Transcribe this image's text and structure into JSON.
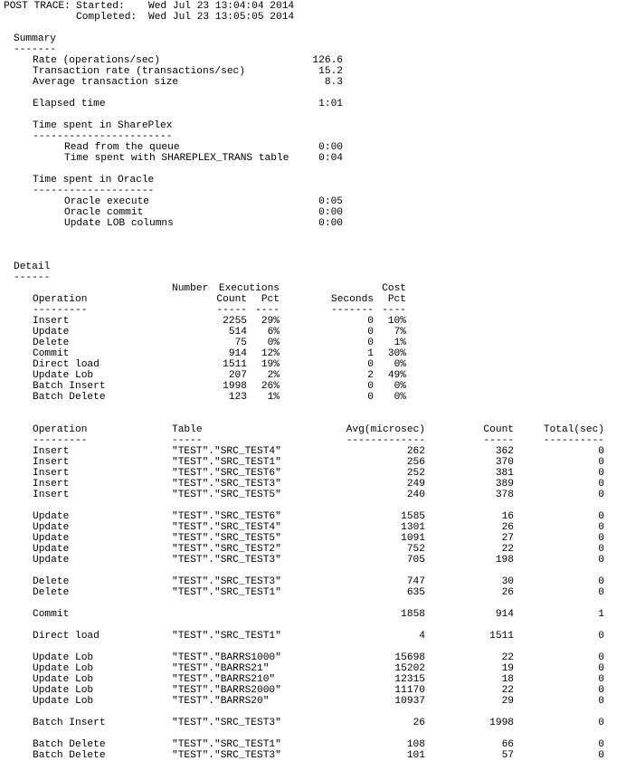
{
  "header": {
    "title": "POST TRACE:",
    "started_label": "Started:",
    "started_value": "Wed Jul 23 13:04:04 2014",
    "completed_label": "Completed:",
    "completed_value": "Wed Jul 23 13:05:05 2014"
  },
  "summary": {
    "heading": "Summary",
    "underline": "-------",
    "metrics": [
      {
        "label": "Rate (operations/sec)",
        "value": "126.6"
      },
      {
        "label": "Transaction rate (transactions/sec)",
        "value": "15.2"
      },
      {
        "label": "Average transaction size",
        "value": "8.3"
      }
    ],
    "elapsed": {
      "label": "Elapsed time",
      "value": "1:01"
    },
    "shareplex": {
      "heading": "Time spent in SharePlex",
      "underline": "-----------------------",
      "items": [
        {
          "label": "Read from the queue",
          "value": "0:00"
        },
        {
          "label": "Time spent with SHAREPLEX_TRANS table",
          "value": "0:04"
        }
      ]
    },
    "oracle": {
      "heading": "Time spent in Oracle",
      "underline": "--------------------",
      "items": [
        {
          "label": "Oracle execute",
          "value": "0:05"
        },
        {
          "label": "Oracle commit",
          "value": "0:00"
        },
        {
          "label": "Update LOB columns",
          "value": "0:00"
        }
      ]
    }
  },
  "detail": {
    "heading": "Detail",
    "underline": "------",
    "ops_table": {
      "header1": {
        "number": "Number",
        "executions": "Executions",
        "cost": "Cost"
      },
      "header2": {
        "operation": "Operation",
        "count": "Count",
        "pct": "Pct",
        "seconds": "Seconds",
        "cost_pct": "Pct"
      },
      "dashes": {
        "operation": "---------",
        "count": "-----",
        "pct": "----",
        "seconds": "-------",
        "cost_pct": "----"
      },
      "rows": [
        {
          "operation": "Insert",
          "count": "2255",
          "pct": "29%",
          "seconds": "0",
          "cost_pct": "10%"
        },
        {
          "operation": "Update",
          "count": "514",
          "pct": "6%",
          "seconds": "0",
          "cost_pct": "7%"
        },
        {
          "operation": "Delete",
          "count": "75",
          "pct": "0%",
          "seconds": "0",
          "cost_pct": "1%"
        },
        {
          "operation": "Commit",
          "count": "914",
          "pct": "12%",
          "seconds": "1",
          "cost_pct": "30%"
        },
        {
          "operation": "Direct load",
          "count": "1511",
          "pct": "19%",
          "seconds": "0",
          "cost_pct": "0%"
        },
        {
          "operation": "Update Lob",
          "count": "207",
          "pct": "2%",
          "seconds": "2",
          "cost_pct": "49%"
        },
        {
          "operation": "Batch Insert",
          "count": "1998",
          "pct": "26%",
          "seconds": "0",
          "cost_pct": "0%"
        },
        {
          "operation": "Batch Delete",
          "count": "123",
          "pct": "1%",
          "seconds": "0",
          "cost_pct": "0%"
        }
      ]
    },
    "table_stats": {
      "header": {
        "operation": "Operation",
        "table": "Table",
        "avg": "Avg(microsec)",
        "count": "Count",
        "total": "Total(sec)"
      },
      "dashes": {
        "operation": "---------",
        "table": "-----",
        "avg": "-------------",
        "count": "-----",
        "total": "----------"
      },
      "groups": [
        [
          {
            "operation": "Insert",
            "table": "\"TEST\".\"SRC_TEST4\"",
            "avg": "262",
            "count": "362",
            "total": "0"
          },
          {
            "operation": "Insert",
            "table": "\"TEST\".\"SRC_TEST1\"",
            "avg": "256",
            "count": "370",
            "total": "0"
          },
          {
            "operation": "Insert",
            "table": "\"TEST\".\"SRC_TEST6\"",
            "avg": "252",
            "count": "381",
            "total": "0"
          },
          {
            "operation": "Insert",
            "table": "\"TEST\".\"SRC_TEST3\"",
            "avg": "249",
            "count": "389",
            "total": "0"
          },
          {
            "operation": "Insert",
            "table": "\"TEST\".\"SRC_TEST5\"",
            "avg": "240",
            "count": "378",
            "total": "0"
          }
        ],
        [
          {
            "operation": "Update",
            "table": "\"TEST\".\"SRC_TEST6\"",
            "avg": "1585",
            "count": "16",
            "total": "0"
          },
          {
            "operation": "Update",
            "table": "\"TEST\".\"SRC_TEST4\"",
            "avg": "1301",
            "count": "26",
            "total": "0"
          },
          {
            "operation": "Update",
            "table": "\"TEST\".\"SRC_TEST5\"",
            "avg": "1091",
            "count": "27",
            "total": "0"
          },
          {
            "operation": "Update",
            "table": "\"TEST\".\"SRC_TEST2\"",
            "avg": "752",
            "count": "22",
            "total": "0"
          },
          {
            "operation": "Update",
            "table": "\"TEST\".\"SRC_TEST3\"",
            "avg": "705",
            "count": "198",
            "total": "0"
          }
        ],
        [
          {
            "operation": "Delete",
            "table": "\"TEST\".\"SRC_TEST3\"",
            "avg": "747",
            "count": "30",
            "total": "0"
          },
          {
            "operation": "Delete",
            "table": "\"TEST\".\"SRC_TEST1\"",
            "avg": "635",
            "count": "26",
            "total": "0"
          }
        ],
        [
          {
            "operation": "Commit",
            "table": "",
            "avg": "1858",
            "count": "914",
            "total": "1"
          }
        ],
        [
          {
            "operation": "Direct load",
            "table": "\"TEST\".\"SRC_TEST1\"",
            "avg": "4",
            "count": "1511",
            "total": "0"
          }
        ],
        [
          {
            "operation": "Update Lob",
            "table": "\"TEST\".\"BARRS1000\"",
            "avg": "15698",
            "count": "22",
            "total": "0"
          },
          {
            "operation": "Update Lob",
            "table": "\"TEST\".\"BARRS21\"",
            "avg": "15202",
            "count": "19",
            "total": "0"
          },
          {
            "operation": "Update Lob",
            "table": "\"TEST\".\"BARRS210\"",
            "avg": "12315",
            "count": "18",
            "total": "0"
          },
          {
            "operation": "Update Lob",
            "table": "\"TEST\".\"BARRS2000\"",
            "avg": "11170",
            "count": "22",
            "total": "0"
          },
          {
            "operation": "Update Lob",
            "table": "\"TEST\".\"BARRS20\"",
            "avg": "10937",
            "count": "29",
            "total": "0"
          }
        ],
        [
          {
            "operation": "Batch Insert",
            "table": "\"TEST\".\"SRC_TEST3\"",
            "avg": "26",
            "count": "1998",
            "total": "0"
          }
        ],
        [
          {
            "operation": "Batch Delete",
            "table": "\"TEST\".\"SRC_TEST1\"",
            "avg": "108",
            "count": "66",
            "total": "0"
          },
          {
            "operation": "Batch Delete",
            "table": "\"TEST\".\"SRC_TEST3\"",
            "avg": "101",
            "count": "57",
            "total": "0"
          }
        ]
      ]
    }
  }
}
